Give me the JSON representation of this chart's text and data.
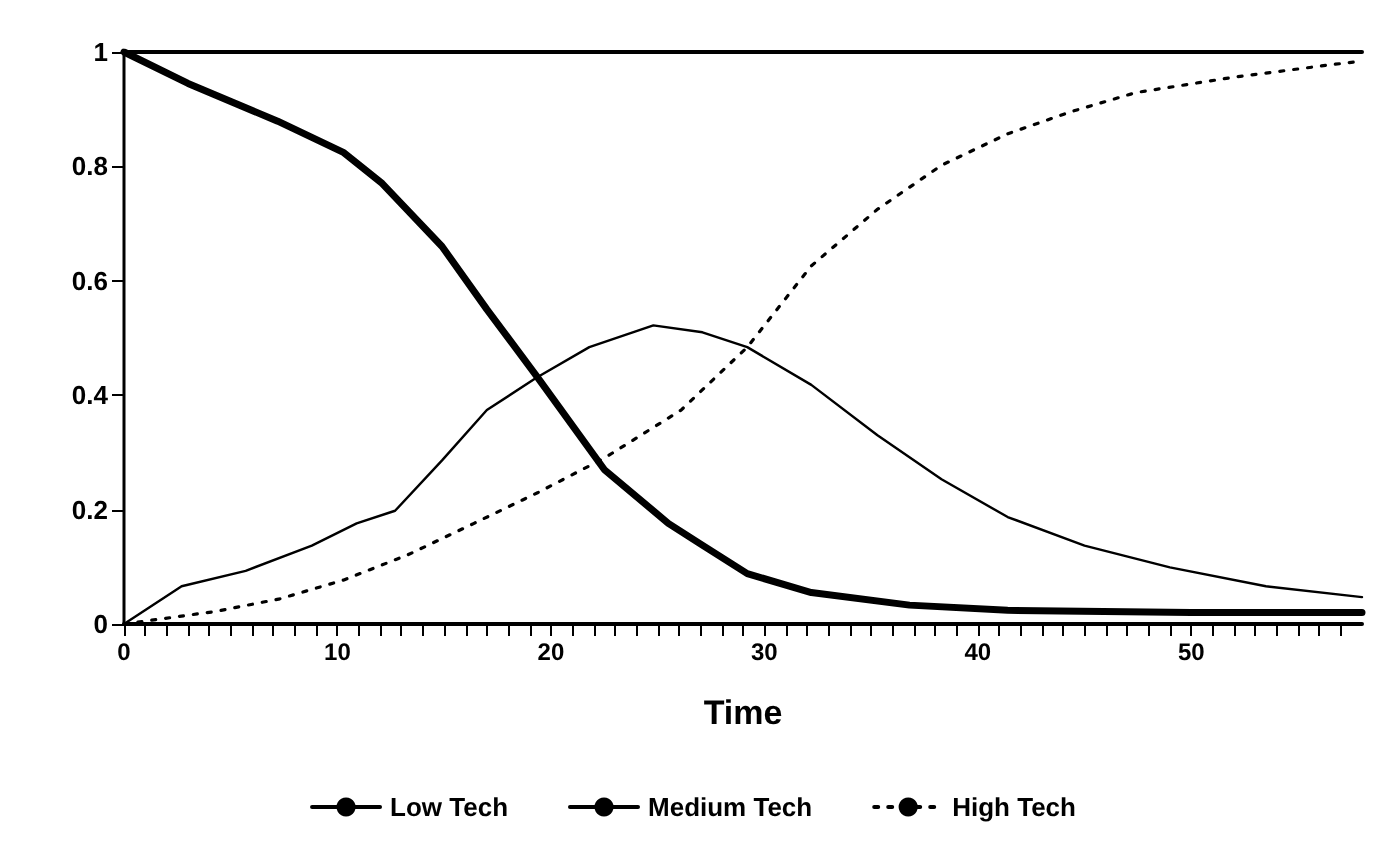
{
  "chart_data": {
    "type": "line",
    "xlabel": "Time",
    "xlim": [
      0,
      58
    ],
    "xticks": [
      0,
      10,
      20,
      30,
      40,
      50
    ],
    "ylim": [
      0,
      1
    ],
    "yticks": [
      0,
      0.2,
      0.4,
      0.6,
      0.8,
      1
    ],
    "grid": false,
    "legend": "bottom",
    "marker": "none",
    "series": [
      {
        "name": "Low Tech",
        "color": "#000000",
        "line_style": "solid",
        "x": [
          0,
          3,
          7.2,
          10.3,
          12.1,
          14.9,
          17,
          19.4,
          22.5,
          25.5,
          27,
          29.2,
          32.2,
          36.8,
          41.4,
          50,
          58
        ],
        "values": [
          1,
          0.945,
          0.879,
          0.824,
          0.77,
          0.66,
          0.55,
          0.43,
          0.27,
          0.176,
          0.14,
          0.088,
          0.055,
          0.033,
          0.024,
          0.02,
          0.02
        ]
      },
      {
        "name": "Medium Tech",
        "color": "#000000",
        "line_style": "solid",
        "x": [
          0,
          2.7,
          5.7,
          8.8,
          10.9,
          12.7,
          14.9,
          17,
          19.3,
          21.8,
          24.8,
          27.1,
          29.2,
          32.2,
          35.3,
          38.3,
          41.4,
          45,
          49,
          53.5,
          58
        ],
        "values": [
          0,
          0.066,
          0.093,
          0.137,
          0.176,
          0.198,
          0.286,
          0.374,
          0.43,
          0.484,
          0.522,
          0.51,
          0.484,
          0.418,
          0.33,
          0.253,
          0.187,
          0.137,
          0.099,
          0.066,
          0.047
        ]
      },
      {
        "name": "High Tech",
        "color": "#000000",
        "line_style": "dotted",
        "x": [
          0,
          4.3,
          7.3,
          10.3,
          13.3,
          16.4,
          19.4,
          22.5,
          26.1,
          29.2,
          32.2,
          35.3,
          38.3,
          41.4,
          44.4,
          47.4,
          52,
          56.6,
          58
        ],
        "values": [
          0,
          0.022,
          0.044,
          0.077,
          0.121,
          0.176,
          0.23,
          0.29,
          0.374,
          0.484,
          0.626,
          0.725,
          0.802,
          0.857,
          0.896,
          0.929,
          0.956,
          0.978,
          0.984
        ]
      }
    ]
  }
}
